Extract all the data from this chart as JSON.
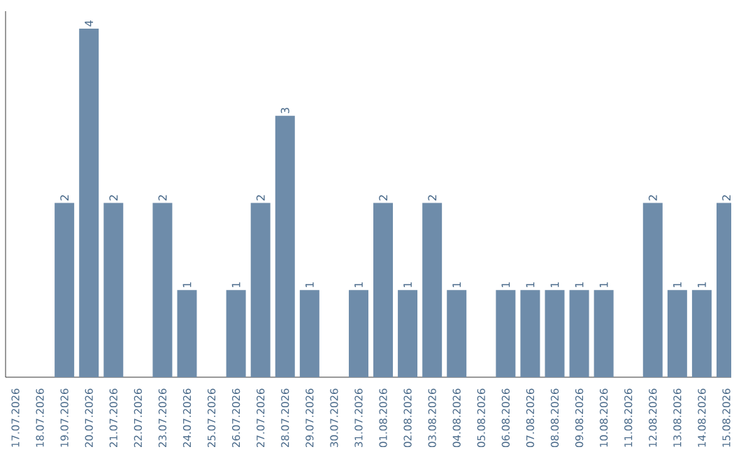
{
  "chart_data": {
    "type": "bar",
    "categories": [
      "17.07.2026",
      "18.07.2026",
      "19.07.2026",
      "20.07.2026",
      "21.07.2026",
      "22.07.2026",
      "23.07.2026",
      "24.07.2026",
      "25.07.2026",
      "26.07.2026",
      "27.07.2026",
      "28.07.2026",
      "29.07.2026",
      "30.07.2026",
      "31.07.2026",
      "01.08.2026",
      "02.08.2026",
      "03.08.2026",
      "04.08.2026",
      "05.08.2026",
      "06.08.2026",
      "07.08.2026",
      "08.08.2026",
      "09.08.2026",
      "10.08.2026",
      "11.08.2026",
      "12.08.2026",
      "13.08.2026",
      "14.08.2026",
      "15.08.2026"
    ],
    "values": [
      0,
      0,
      2,
      4,
      2,
      0,
      2,
      1,
      0,
      1,
      2,
      3,
      1,
      0,
      1,
      2,
      1,
      2,
      1,
      0,
      1,
      1,
      1,
      1,
      1,
      0,
      2,
      1,
      1,
      2
    ],
    "value_labels": [
      null,
      null,
      "2",
      "4",
      "2",
      null,
      "2",
      "1",
      null,
      "1",
      "2",
      "3",
      "1",
      null,
      "1",
      "2",
      "1",
      "2",
      "1",
      null,
      "1",
      "1",
      "1",
      "1",
      "1",
      null,
      "2",
      "1",
      "1",
      "2"
    ],
    "color": "#6e8caa",
    "tick_labels": "x"
  }
}
